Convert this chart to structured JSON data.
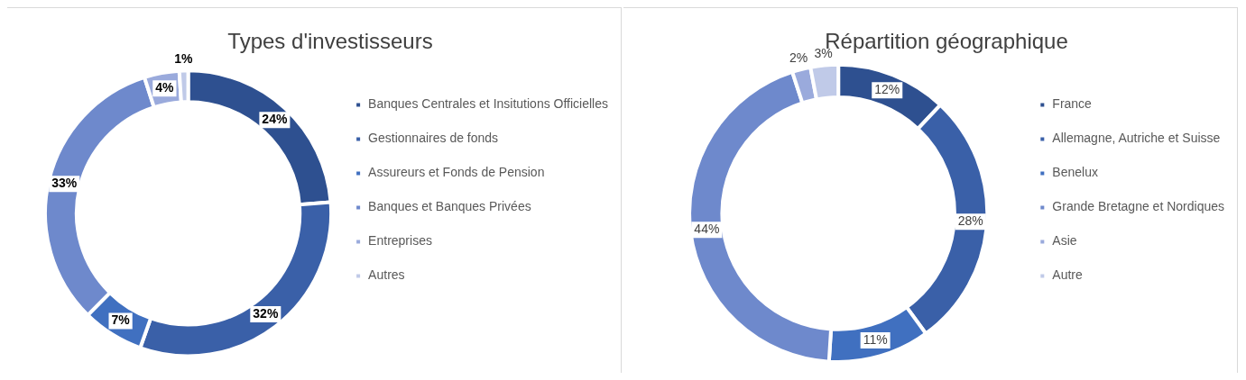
{
  "chart_data": [
    {
      "type": "donut",
      "title": "Types d'investisseurs",
      "categories": [
        "Banques Centrales et Insitutions Officielles",
        "Gestionnaires de fonds",
        "Assureurs et Fonds de Pension",
        "Banques et Banques Privées",
        "Entreprises",
        "Autres"
      ],
      "values": [
        24,
        32,
        7,
        33,
        4,
        1
      ],
      "value_labels": [
        "24%",
        "32%",
        "7%",
        "33%",
        "4%",
        "1%"
      ],
      "colors": [
        "#2e5090",
        "#3a60a8",
        "#4070c0",
        "#6e89cc",
        "#9aaadc",
        "#c0cae8"
      ],
      "legend": "right"
    },
    {
      "type": "donut",
      "title": "Répartition géographique",
      "categories": [
        "France",
        "Allemagne, Autriche et Suisse",
        "Benelux",
        "Grande Bretagne et Nordiques",
        "Asie",
        "Autre"
      ],
      "values": [
        12,
        28,
        11,
        44,
        2,
        3
      ],
      "value_labels": [
        "12%",
        "28%",
        "11%",
        "44%",
        "2%",
        "3%"
      ],
      "colors": [
        "#2e5090",
        "#3a60a8",
        "#4070c0",
        "#6e89cc",
        "#9aaadc",
        "#c0cae8"
      ],
      "legend": "right"
    }
  ]
}
